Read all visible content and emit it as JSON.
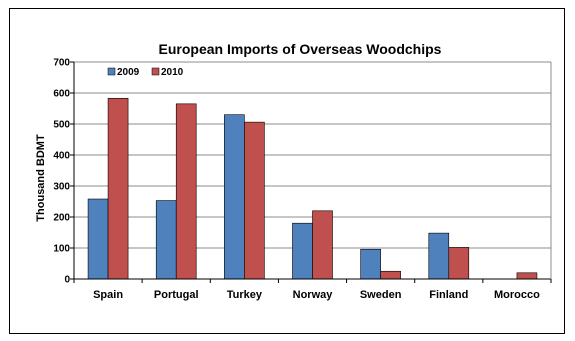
{
  "chart_data": {
    "type": "bar",
    "title": "European Imports of Overseas Woodchips",
    "xlabel": "",
    "ylabel": "Thousand BDMT",
    "categories": [
      "Spain",
      "Portugal",
      "Turkey",
      "Norway",
      "Sweden",
      "Finland",
      "Morocco"
    ],
    "series": [
      {
        "name": "2009",
        "color": "#4f81bd",
        "values": [
          258,
          253,
          530,
          180,
          96,
          148,
          0
        ]
      },
      {
        "name": "2010",
        "color": "#c0504d",
        "values": [
          583,
          565,
          506,
          220,
          25,
          102,
          20
        ]
      }
    ],
    "ylim": [
      0,
      700
    ],
    "yticks": [
      "0",
      "100",
      "200",
      "300",
      "400",
      "500",
      "600",
      "700"
    ],
    "grid": true,
    "legend": "top-left"
  }
}
